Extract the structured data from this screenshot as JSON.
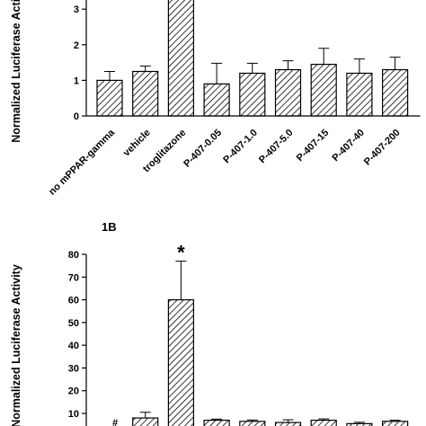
{
  "chart_data": [
    {
      "type": "bar",
      "title": "",
      "xlabel": "",
      "ylabel": "Normalized Luciferase Activity",
      "ylim": [
        0,
        3.4
      ],
      "yticks": [
        0,
        1,
        2,
        3
      ],
      "bar_pattern": "diagonal-hatch",
      "grid": false,
      "legend": "none",
      "categories": [
        "no mPPAR-gamma",
        "vehicle",
        "troglitazone",
        "P-407-0.05",
        "P-407-1.0",
        "P-407-5.0",
        "P-407-15",
        "P-407-40",
        "P-407-200"
      ],
      "values": [
        1.0,
        1.25,
        3.6,
        0.9,
        1.2,
        1.3,
        1.45,
        1.2,
        1.3
      ],
      "errors": [
        0.25,
        0.15,
        0.0,
        0.58,
        0.28,
        0.25,
        0.45,
        0.4,
        0.35
      ]
    },
    {
      "type": "bar",
      "title": "1B",
      "xlabel": "",
      "ylabel": "Normalized Luciferase Activity",
      "ylim": [
        0,
        80
      ],
      "yticks": [
        10,
        20,
        30,
        40,
        50,
        60,
        70,
        80
      ],
      "bar_pattern": "diagonal-hatch",
      "grid": false,
      "legend": "none",
      "values": [
        0.5,
        8,
        60,
        7,
        6.5,
        6,
        7,
        5.5,
        6.5
      ],
      "errors": [
        0,
        2.5,
        17,
        0.5,
        0.6,
        1.2,
        0.6,
        0.6,
        0.5
      ],
      "annotations": [
        {
          "text": "#",
          "bar_index": 0
        },
        {
          "text": "*",
          "bar_index": 2
        }
      ]
    }
  ]
}
